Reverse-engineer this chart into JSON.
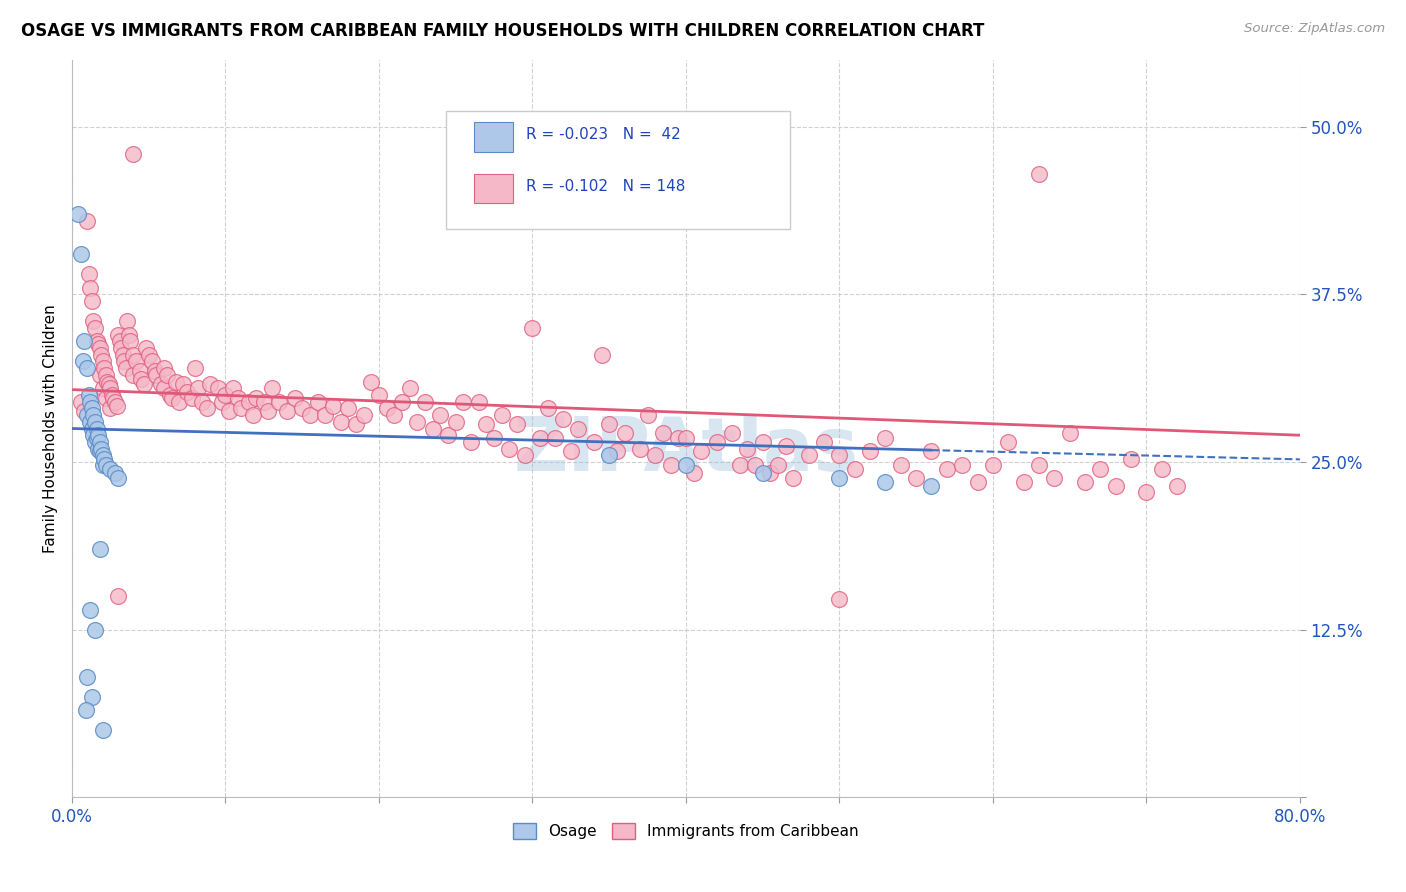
{
  "title": "OSAGE VS IMMIGRANTS FROM CARIBBEAN FAMILY HOUSEHOLDS WITH CHILDREN CORRELATION CHART",
  "source": "Source: ZipAtlas.com",
  "ylabel": "Family Households with Children",
  "xlim": [
    0.0,
    0.8
  ],
  "ylim": [
    0.0,
    0.55
  ],
  "yticks": [
    0.0,
    0.125,
    0.25,
    0.375,
    0.5
  ],
  "yticklabels": [
    "",
    "12.5%",
    "25.0%",
    "37.5%",
    "50.0%"
  ],
  "legend_blue_r": "-0.023",
  "legend_blue_n": "42",
  "legend_pink_r": "-0.102",
  "legend_pink_n": "148",
  "blue_fill": "#adc8e8",
  "pink_fill": "#f5b8c8",
  "blue_edge": "#5b8cc8",
  "pink_edge": "#e06080",
  "blue_line": "#4070c0",
  "pink_line": "#e05878",
  "blue_scatter": [
    [
      0.004,
      0.435
    ],
    [
      0.006,
      0.405
    ],
    [
      0.007,
      0.325
    ],
    [
      0.008,
      0.34
    ],
    [
      0.01,
      0.32
    ],
    [
      0.01,
      0.285
    ],
    [
      0.011,
      0.3
    ],
    [
      0.012,
      0.295
    ],
    [
      0.012,
      0.28
    ],
    [
      0.013,
      0.29
    ],
    [
      0.013,
      0.275
    ],
    [
      0.014,
      0.285
    ],
    [
      0.014,
      0.27
    ],
    [
      0.015,
      0.28
    ],
    [
      0.015,
      0.265
    ],
    [
      0.016,
      0.275
    ],
    [
      0.016,
      0.268
    ],
    [
      0.017,
      0.27
    ],
    [
      0.017,
      0.26
    ],
    [
      0.018,
      0.265
    ],
    [
      0.018,
      0.258
    ],
    [
      0.019,
      0.26
    ],
    [
      0.02,
      0.255
    ],
    [
      0.02,
      0.248
    ],
    [
      0.021,
      0.252
    ],
    [
      0.022,
      0.248
    ],
    [
      0.025,
      0.245
    ],
    [
      0.028,
      0.242
    ],
    [
      0.03,
      0.238
    ],
    [
      0.018,
      0.185
    ],
    [
      0.012,
      0.14
    ],
    [
      0.015,
      0.125
    ],
    [
      0.01,
      0.09
    ],
    [
      0.013,
      0.075
    ],
    [
      0.009,
      0.065
    ],
    [
      0.35,
      0.255
    ],
    [
      0.4,
      0.248
    ],
    [
      0.45,
      0.242
    ],
    [
      0.5,
      0.238
    ],
    [
      0.53,
      0.235
    ],
    [
      0.56,
      0.232
    ],
    [
      0.02,
      0.05
    ]
  ],
  "pink_scatter": [
    [
      0.006,
      0.295
    ],
    [
      0.008,
      0.288
    ],
    [
      0.01,
      0.43
    ],
    [
      0.011,
      0.39
    ],
    [
      0.012,
      0.38
    ],
    [
      0.013,
      0.37
    ],
    [
      0.014,
      0.355
    ],
    [
      0.015,
      0.35
    ],
    [
      0.016,
      0.34
    ],
    [
      0.017,
      0.338
    ],
    [
      0.018,
      0.335
    ],
    [
      0.018,
      0.315
    ],
    [
      0.019,
      0.33
    ],
    [
      0.02,
      0.325
    ],
    [
      0.02,
      0.305
    ],
    [
      0.021,
      0.32
    ],
    [
      0.022,
      0.315
    ],
    [
      0.022,
      0.298
    ],
    [
      0.023,
      0.31
    ],
    [
      0.024,
      0.308
    ],
    [
      0.025,
      0.305
    ],
    [
      0.025,
      0.29
    ],
    [
      0.026,
      0.3
    ],
    [
      0.027,
      0.298
    ],
    [
      0.028,
      0.295
    ],
    [
      0.029,
      0.292
    ],
    [
      0.03,
      0.345
    ],
    [
      0.031,
      0.34
    ],
    [
      0.032,
      0.335
    ],
    [
      0.033,
      0.33
    ],
    [
      0.034,
      0.325
    ],
    [
      0.035,
      0.32
    ],
    [
      0.036,
      0.355
    ],
    [
      0.037,
      0.345
    ],
    [
      0.038,
      0.34
    ],
    [
      0.04,
      0.33
    ],
    [
      0.04,
      0.315
    ],
    [
      0.042,
      0.325
    ],
    [
      0.044,
      0.318
    ],
    [
      0.045,
      0.312
    ],
    [
      0.047,
      0.308
    ],
    [
      0.048,
      0.335
    ],
    [
      0.05,
      0.33
    ],
    [
      0.052,
      0.325
    ],
    [
      0.054,
      0.318
    ],
    [
      0.055,
      0.315
    ],
    [
      0.058,
      0.308
    ],
    [
      0.06,
      0.305
    ],
    [
      0.06,
      0.32
    ],
    [
      0.062,
      0.315
    ],
    [
      0.064,
      0.3
    ],
    [
      0.065,
      0.298
    ],
    [
      0.068,
      0.31
    ],
    [
      0.07,
      0.295
    ],
    [
      0.072,
      0.308
    ],
    [
      0.075,
      0.302
    ],
    [
      0.078,
      0.298
    ],
    [
      0.08,
      0.32
    ],
    [
      0.082,
      0.305
    ],
    [
      0.085,
      0.295
    ],
    [
      0.088,
      0.29
    ],
    [
      0.09,
      0.308
    ],
    [
      0.095,
      0.305
    ],
    [
      0.098,
      0.295
    ],
    [
      0.1,
      0.3
    ],
    [
      0.102,
      0.288
    ],
    [
      0.105,
      0.305
    ],
    [
      0.108,
      0.298
    ],
    [
      0.11,
      0.29
    ],
    [
      0.115,
      0.295
    ],
    [
      0.118,
      0.285
    ],
    [
      0.12,
      0.298
    ],
    [
      0.125,
      0.295
    ],
    [
      0.128,
      0.288
    ],
    [
      0.13,
      0.305
    ],
    [
      0.135,
      0.295
    ],
    [
      0.14,
      0.288
    ],
    [
      0.145,
      0.298
    ],
    [
      0.15,
      0.29
    ],
    [
      0.155,
      0.285
    ],
    [
      0.16,
      0.295
    ],
    [
      0.165,
      0.285
    ],
    [
      0.17,
      0.292
    ],
    [
      0.175,
      0.28
    ],
    [
      0.18,
      0.29
    ],
    [
      0.185,
      0.278
    ],
    [
      0.19,
      0.285
    ],
    [
      0.195,
      0.31
    ],
    [
      0.2,
      0.3
    ],
    [
      0.205,
      0.29
    ],
    [
      0.21,
      0.285
    ],
    [
      0.215,
      0.295
    ],
    [
      0.22,
      0.305
    ],
    [
      0.225,
      0.28
    ],
    [
      0.23,
      0.295
    ],
    [
      0.235,
      0.275
    ],
    [
      0.24,
      0.285
    ],
    [
      0.245,
      0.27
    ],
    [
      0.25,
      0.28
    ],
    [
      0.255,
      0.295
    ],
    [
      0.26,
      0.265
    ],
    [
      0.265,
      0.295
    ],
    [
      0.27,
      0.278
    ],
    [
      0.275,
      0.268
    ],
    [
      0.28,
      0.285
    ],
    [
      0.285,
      0.26
    ],
    [
      0.29,
      0.278
    ],
    [
      0.295,
      0.255
    ],
    [
      0.3,
      0.35
    ],
    [
      0.305,
      0.268
    ],
    [
      0.31,
      0.29
    ],
    [
      0.315,
      0.268
    ],
    [
      0.32,
      0.282
    ],
    [
      0.325,
      0.258
    ],
    [
      0.33,
      0.275
    ],
    [
      0.34,
      0.265
    ],
    [
      0.345,
      0.33
    ],
    [
      0.35,
      0.278
    ],
    [
      0.355,
      0.258
    ],
    [
      0.36,
      0.272
    ],
    [
      0.37,
      0.26
    ],
    [
      0.375,
      0.285
    ],
    [
      0.38,
      0.255
    ],
    [
      0.385,
      0.272
    ],
    [
      0.39,
      0.248
    ],
    [
      0.395,
      0.268
    ],
    [
      0.4,
      0.268
    ],
    [
      0.405,
      0.242
    ],
    [
      0.41,
      0.258
    ],
    [
      0.42,
      0.265
    ],
    [
      0.43,
      0.272
    ],
    [
      0.435,
      0.248
    ],
    [
      0.44,
      0.26
    ],
    [
      0.445,
      0.248
    ],
    [
      0.45,
      0.265
    ],
    [
      0.455,
      0.242
    ],
    [
      0.46,
      0.248
    ],
    [
      0.465,
      0.262
    ],
    [
      0.47,
      0.238
    ],
    [
      0.48,
      0.255
    ],
    [
      0.49,
      0.265
    ],
    [
      0.5,
      0.255
    ],
    [
      0.51,
      0.245
    ],
    [
      0.52,
      0.258
    ],
    [
      0.53,
      0.268
    ],
    [
      0.54,
      0.248
    ],
    [
      0.55,
      0.238
    ],
    [
      0.56,
      0.258
    ],
    [
      0.57,
      0.245
    ],
    [
      0.58,
      0.248
    ],
    [
      0.59,
      0.235
    ],
    [
      0.6,
      0.248
    ],
    [
      0.61,
      0.265
    ],
    [
      0.62,
      0.235
    ],
    [
      0.63,
      0.248
    ],
    [
      0.64,
      0.238
    ],
    [
      0.65,
      0.272
    ],
    [
      0.66,
      0.235
    ],
    [
      0.67,
      0.245
    ],
    [
      0.68,
      0.232
    ],
    [
      0.69,
      0.252
    ],
    [
      0.7,
      0.228
    ],
    [
      0.71,
      0.245
    ],
    [
      0.72,
      0.232
    ],
    [
      0.04,
      0.48
    ],
    [
      0.63,
      0.465
    ],
    [
      0.5,
      0.148
    ],
    [
      0.03,
      0.15
    ]
  ]
}
